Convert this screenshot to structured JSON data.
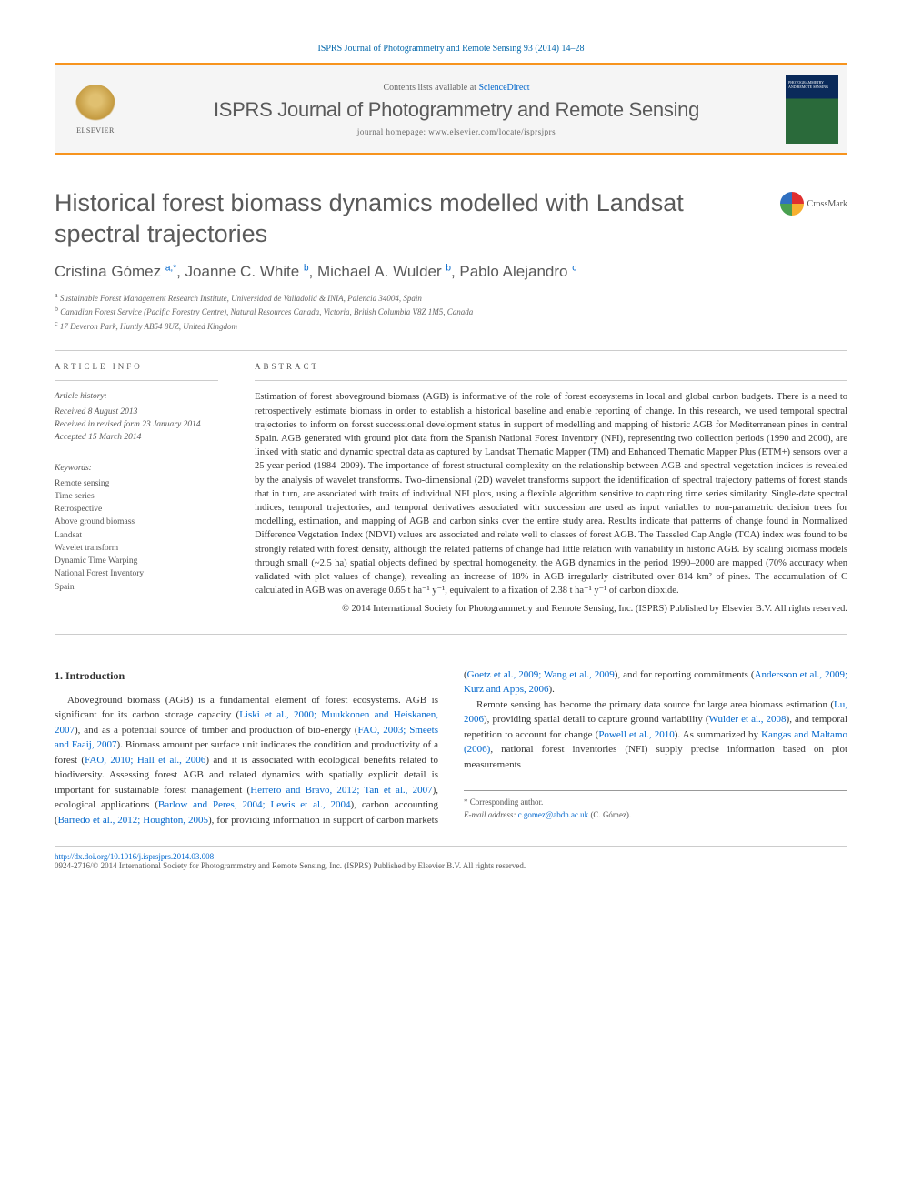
{
  "journal_ref": "ISPRS Journal of Photogrammetry and Remote Sensing 93 (2014) 14–28",
  "header": {
    "contents_available": "Contents lists available at ",
    "sciencedirect": "ScienceDirect",
    "journal_name": "ISPRS Journal of Photogrammetry and Remote Sensing",
    "homepage_label": "journal homepage: ",
    "homepage_url": "www.elsevier.com/locate/isprsjprs",
    "elsevier": "ELSEVIER"
  },
  "crossmark": "CrossMark",
  "title": "Historical forest biomass dynamics modelled with Landsat spectral trajectories",
  "authors_html": "Cristina Gómez <sup>a,*</sup>, Joanne C. White <sup>b</sup>, Michael A. Wulder <sup>b</sup>, Pablo Alejandro <sup>c</sup>",
  "affiliations": [
    {
      "sup": "a",
      "text": "Sustainable Forest Management Research Institute, Universidad de Valladolid & INIA, Palencia 34004, Spain"
    },
    {
      "sup": "b",
      "text": "Canadian Forest Service (Pacific Forestry Centre), Natural Resources Canada, Victoria, British Columbia V8Z 1M5, Canada"
    },
    {
      "sup": "c",
      "text": "17 Deveron Park, Huntly AB54 8UZ, United Kingdom"
    }
  ],
  "article_info_label": "ARTICLE INFO",
  "abstract_label": "ABSTRACT",
  "history": {
    "label": "Article history:",
    "received": "Received 8 August 2013",
    "revised": "Received in revised form 23 January 2014",
    "accepted": "Accepted 15 March 2014"
  },
  "keywords": {
    "label": "Keywords:",
    "items": [
      "Remote sensing",
      "Time series",
      "Retrospective",
      "Above ground biomass",
      "Landsat",
      "Wavelet transform",
      "Dynamic Time Warping",
      "National Forest Inventory",
      "Spain"
    ]
  },
  "abstract": "Estimation of forest aboveground biomass (AGB) is informative of the role of forest ecosystems in local and global carbon budgets. There is a need to retrospectively estimate biomass in order to establish a historical baseline and enable reporting of change. In this research, we used temporal spectral trajectories to inform on forest successional development status in support of modelling and mapping of historic AGB for Mediterranean pines in central Spain. AGB generated with ground plot data from the Spanish National Forest Inventory (NFI), representing two collection periods (1990 and 2000), are linked with static and dynamic spectral data as captured by Landsat Thematic Mapper (TM) and Enhanced Thematic Mapper Plus (ETM+) sensors over a 25 year period (1984–2009). The importance of forest structural complexity on the relationship between AGB and spectral vegetation indices is revealed by the analysis of wavelet transforms. Two-dimensional (2D) wavelet transforms support the identification of spectral trajectory patterns of forest stands that in turn, are associated with traits of individual NFI plots, using a flexible algorithm sensitive to capturing time series similarity. Single-date spectral indices, temporal trajectories, and temporal derivatives associated with succession are used as input variables to non-parametric decision trees for modelling, estimation, and mapping of AGB and carbon sinks over the entire study area. Results indicate that patterns of change found in Normalized Difference Vegetation Index (NDVI) values are associated and relate well to classes of forest AGB. The Tasseled Cap Angle (TCA) index was found to be strongly related with forest density, although the related patterns of change had little relation with variability in historic AGB. By scaling biomass models through small (~2.5 ha) spatial objects defined by spectral homogeneity, the AGB dynamics in the period 1990–2000 are mapped (70% accuracy when validated with plot values of change), revealing an increase of 18% in AGB irregularly distributed over 814 km² of pines. The accumulation of C calculated in AGB was on average 0.65 t ha⁻¹ y⁻¹, equivalent to a fixation of 2.38 t ha⁻¹ y⁻¹ of carbon dioxide.",
  "copyright": "© 2014 International Society for Photogrammetry and Remote Sensing, Inc. (ISPRS) Published by Elsevier B.V. All rights reserved.",
  "intro": {
    "heading": "1. Introduction",
    "p1_pre": "Aboveground biomass (AGB) is a fundamental element of forest ecosystems. AGB is significant for its carbon storage capacity (",
    "p1_l1": "Liski et al., 2000; Muukkonen and Heiskanen, 2007",
    "p1_m1": "), and as a potential source of timber and production of bio-energy (",
    "p1_l2": "FAO, 2003; Smeets and Faaij, 2007",
    "p1_m2": "). Biomass amount per surface unit indicates the condition and productivity of a forest (",
    "p1_l3": "FAO, 2010; Hall et al., 2006",
    "p1_m3": ") and it is associated with ecological benefits related to biodiversity. Assessing forest AGB and related dynamics with ",
    "p1c_pre": "spatially explicit detail is important for sustainable forest management (",
    "p1c_l1": "Herrero and Bravo, 2012; Tan et al., 2007",
    "p1c_m1": "), ecological applications (",
    "p1c_l2": "Barlow and Peres, 2004; Lewis et al., 2004",
    "p1c_m2": "), carbon accounting (",
    "p1c_l3": "Barredo et al., 2012; Houghton, 2005",
    "p1c_m3": "), for providing information in support of carbon markets (",
    "p1c_l4": "Goetz et al., 2009; Wang et al., 2009",
    "p1c_m4": "), and for reporting commitments (",
    "p1c_l5": "Andersson et al., 2009; Kurz and Apps, 2006",
    "p1c_m5": ").",
    "p2_pre": "Remote sensing has become the primary data source for large area biomass estimation (",
    "p2_l1": "Lu, 2006",
    "p2_m1": "), providing spatial detail to capture ground variability (",
    "p2_l2": "Wulder et al., 2008",
    "p2_m2": "), and temporal repetition to account for change (",
    "p2_l3": "Powell et al., 2010",
    "p2_m3": "). As summarized by ",
    "p2_l4": "Kangas and Maltamo (2006)",
    "p2_m4": ", national forest inventories (NFI) supply precise information based on plot measurements"
  },
  "corr": {
    "label": "* Corresponding author.",
    "email_label": "E-mail address: ",
    "email": "c.gomez@abdn.ac.uk",
    "name": " (C. Gómez)."
  },
  "footer": {
    "doi": "http://dx.doi.org/10.1016/j.isprsjprs.2014.03.008",
    "issn_line": "0924-2716/© 2014 International Society for Photogrammetry and Remote Sensing, Inc. (ISPRS) Published by Elsevier B.V. All rights reserved."
  },
  "colors": {
    "accent": "#f7941e",
    "link": "#0066cc",
    "text": "#333333",
    "muted": "#5a5a5a"
  }
}
